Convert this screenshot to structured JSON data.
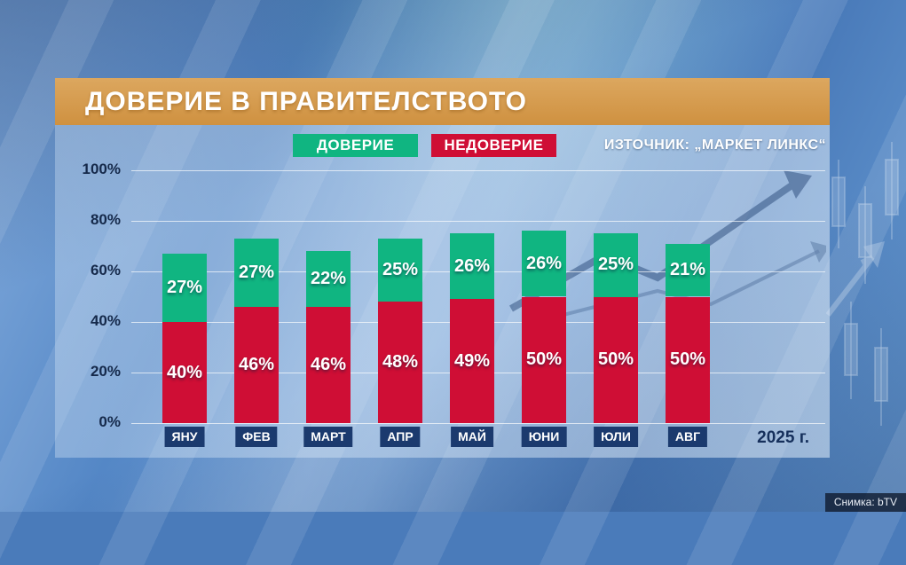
{
  "header": {
    "title": "ДОВЕРИЕ В ПРАВИТЕЛСТВОТО"
  },
  "legend": {
    "trust_label": "ДОВЕРИЕ",
    "distrust_label": "НЕДОВЕРИЕ"
  },
  "source": "ИЗТОЧНИК: „МАРКЕТ ЛИНКС“",
  "footer": {
    "year_label": "2025 г.",
    "credit": "Снимка: bTV"
  },
  "colors": {
    "header_bar": "#d59a4b",
    "trust_green": "#10b581",
    "distrust_red": "#cf0e35",
    "month_badge": "#1b3a6e",
    "axis_text": "#15294a"
  },
  "chart_data": {
    "type": "bar",
    "stacked": true,
    "title": "ДОВЕРИЕ В ПРАВИТЕЛСТВОТО",
    "categories": [
      "ЯНУ",
      "ФЕВ",
      "МАРТ",
      "АПР",
      "МАЙ",
      "ЮНИ",
      "ЮЛИ",
      "АВГ"
    ],
    "series": [
      {
        "name": "НЕДОВЕРИЕ",
        "color": "#cf0e35",
        "values": [
          40,
          46,
          46,
          48,
          49,
          50,
          50,
          50
        ]
      },
      {
        "name": "ДОВЕРИЕ",
        "color": "#10b581",
        "values": [
          27,
          27,
          22,
          25,
          26,
          26,
          25,
          21
        ]
      }
    ],
    "value_suffix": "%",
    "ylim": [
      0,
      100
    ],
    "yticks": [
      "100%",
      "80%",
      "60%",
      "40%",
      "20%",
      "0%"
    ],
    "grid": true,
    "legend_position": "top",
    "source": "МАРКЕТ ЛИНКС",
    "year": "2025"
  }
}
